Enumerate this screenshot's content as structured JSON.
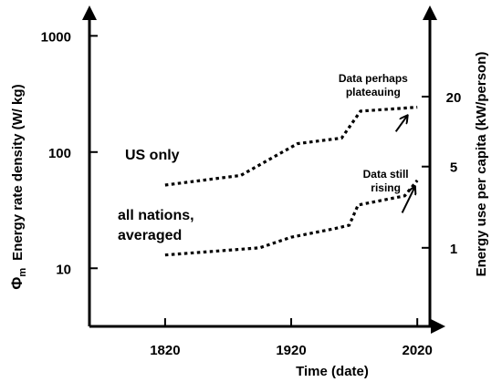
{
  "chart_data": {
    "type": "line",
    "title": "",
    "xlabel": "Time (date)",
    "ylabel_left": {
      "symbol": "Φ",
      "subscript": "m",
      "text": "Energy rate density  (W/ kg)"
    },
    "ylabel_right": "Energy use per capita  (kW/person)",
    "xlim": [
      1760,
      2030
    ],
    "ylim_log10": [
      0.5,
      3.23
    ],
    "y_scale": "log",
    "x_ticks": [
      {
        "value": 1820,
        "label": "1820"
      },
      {
        "value": 1920,
        "label": "1920"
      },
      {
        "value": 2020,
        "label": "2020"
      }
    ],
    "y_ticks_left": [
      {
        "value": 10,
        "label": "10"
      },
      {
        "value": 100,
        "label": "100"
      },
      {
        "value": 1000,
        "label": "1000"
      }
    ],
    "y_ticks_right": [
      {
        "value": 15,
        "label": "1"
      },
      {
        "value": 75,
        "label": "5"
      },
      {
        "value": 300,
        "label": "20"
      }
    ],
    "series": [
      {
        "name": "US only",
        "style": "dotted",
        "color": "#000000",
        "points": [
          [
            1820,
            52
          ],
          [
            1880,
            63
          ],
          [
            1925,
            118
          ],
          [
            1960,
            132
          ],
          [
            1975,
            225
          ],
          [
            2020,
            243
          ]
        ]
      },
      {
        "name": "all nations, averaged",
        "style": "dotted",
        "color": "#000000",
        "points": [
          [
            1820,
            13
          ],
          [
            1895,
            15
          ],
          [
            1920,
            18.5
          ],
          [
            1955,
            22
          ],
          [
            1966,
            23.5
          ],
          [
            1973,
            35
          ],
          [
            2010,
            42
          ],
          [
            2020,
            57
          ]
        ]
      }
    ],
    "annotations": [
      {
        "lines": [
          "Data perhaps",
          "plateauing"
        ],
        "x": 1985,
        "y": 400,
        "arrow_from": [
          2003,
          150
        ],
        "arrow_to": [
          2012,
          205
        ]
      },
      {
        "lines": [
          "Data still",
          "rising"
        ],
        "x": 1995,
        "y": 60,
        "arrow_from": [
          2008,
          30
        ],
        "arrow_to": [
          2018,
          50
        ]
      }
    ],
    "grid": false
  }
}
